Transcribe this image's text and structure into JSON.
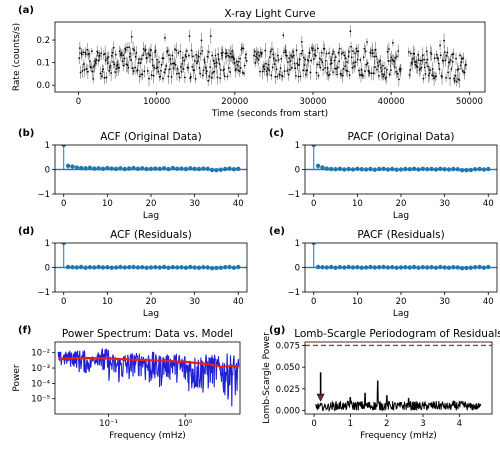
{
  "chart_data": [
    {
      "id": "a",
      "panel_label": "(a)",
      "type": "scatter",
      "title": "X-ray Light Curve",
      "xlabel": "Time (seconds from start)",
      "ylabel": "Rate (counts/s)",
      "xlim": [
        -3000,
        52000
      ],
      "ylim": [
        -0.03,
        0.28
      ],
      "xticks": [
        0,
        10000,
        20000,
        30000,
        40000,
        50000
      ],
      "xtick_labels": [
        "0",
        "10000",
        "20000",
        "30000",
        "40000",
        "50000"
      ],
      "yticks": [
        0.0,
        0.1,
        0.2
      ],
      "ytick_labels": [
        "0.0",
        "0.1",
        "0.2"
      ],
      "series": [
        {
          "x": [
            100,
            2500,
            5000,
            7500,
            10000,
            12500,
            15000,
            17500,
            20000,
            22500,
            25000,
            27500,
            30000,
            32500,
            35000,
            37500,
            40000,
            42500,
            45000,
            47500,
            49500
          ],
          "y": [
            0.1,
            0.09,
            0.11,
            0.1,
            0.09,
            0.1,
            0.09,
            0.08,
            0.1,
            0.12,
            0.1,
            0.09,
            0.11,
            0.1,
            0.11,
            0.1,
            0.08,
            0.1,
            0.09,
            0.08,
            0.07
          ],
          "color": "#000000"
        }
      ],
      "gaps_x": [
        [
          21600,
          22400
        ],
        [
          41300,
          42200
        ]
      ]
    },
    {
      "id": "b",
      "panel_label": "(b)",
      "type": "stem",
      "title": "ACF (Original Data)",
      "xlabel": "Lag",
      "ylabel": "",
      "xlim": [
        -2,
        42
      ],
      "ylim": [
        -1,
        1
      ],
      "xticks": [
        0,
        10,
        20,
        30,
        40
      ],
      "xtick_labels": [
        "0",
        "10",
        "20",
        "30",
        "40"
      ],
      "yticks": [
        -1,
        0,
        1
      ],
      "ytick_labels": [
        "−1",
        "0",
        "1"
      ],
      "band": 0.06,
      "values": [
        1.0,
        0.15,
        0.12,
        0.08,
        0.06,
        0.05,
        0.07,
        0.04,
        0.05,
        0.03,
        0.06,
        0.04,
        0.03,
        0.05,
        0.02,
        0.04,
        0.06,
        0.03,
        0.05,
        0.02,
        0.03,
        0.04,
        0.03,
        0.05,
        0.02,
        0.06,
        0.03,
        0.04,
        0.02,
        0.05,
        0.03,
        0.02,
        0.04,
        0.03,
        -0.02,
        -0.03,
        -0.01,
        0.02,
        0.04,
        0.01,
        0.03
      ]
    },
    {
      "id": "c",
      "panel_label": "(c)",
      "type": "stem",
      "title": "PACF (Original Data)",
      "xlabel": "Lag",
      "ylabel": "",
      "xlim": [
        -2,
        42
      ],
      "ylim": [
        -1,
        1
      ],
      "xticks": [
        0,
        10,
        20,
        30,
        40
      ],
      "xtick_labels": [
        "0",
        "10",
        "20",
        "30",
        "40"
      ],
      "yticks": [
        -1,
        0,
        1
      ],
      "ytick_labels": [
        "−1",
        "0",
        "1"
      ],
      "band": 0.06,
      "values": [
        1.0,
        0.15,
        0.08,
        0.04,
        0.02,
        0.01,
        0.03,
        0.0,
        0.02,
        0.0,
        0.03,
        0.01,
        0.0,
        0.02,
        -0.01,
        0.02,
        0.03,
        0.0,
        0.02,
        -0.01,
        0.0,
        0.02,
        0.01,
        0.03,
        0.0,
        0.03,
        0.01,
        0.02,
        0.0,
        0.03,
        0.01,
        0.0,
        0.02,
        0.01,
        -0.03,
        -0.03,
        -0.02,
        0.01,
        0.02,
        0.0,
        0.02
      ]
    },
    {
      "id": "d",
      "panel_label": "(d)",
      "type": "stem",
      "title": "ACF (Residuals)",
      "xlabel": "Lag",
      "ylabel": "",
      "xlim": [
        -2,
        42
      ],
      "ylim": [
        -1,
        1
      ],
      "xticks": [
        0,
        10,
        20,
        30,
        40
      ],
      "xtick_labels": [
        "0",
        "10",
        "20",
        "30",
        "40"
      ],
      "yticks": [
        -1,
        0,
        1
      ],
      "ytick_labels": [
        "−1",
        "0",
        "1"
      ],
      "band": 0.06,
      "values": [
        1.0,
        0.02,
        0.01,
        0.0,
        0.02,
        -0.01,
        0.01,
        0.0,
        0.02,
        0.0,
        0.01,
        -0.01,
        0.0,
        0.02,
        0.0,
        0.01,
        0.02,
        0.0,
        0.01,
        -0.01,
        0.0,
        0.01,
        0.0,
        0.02,
        -0.01,
        0.01,
        0.0,
        0.01,
        -0.01,
        0.02,
        0.0,
        -0.01,
        0.01,
        0.0,
        -0.03,
        -0.02,
        -0.01,
        0.01,
        0.02,
        -0.01,
        0.02
      ]
    },
    {
      "id": "e",
      "panel_label": "(e)",
      "type": "stem",
      "title": "PACF (Residuals)",
      "xlabel": "Lag",
      "ylabel": "",
      "xlim": [
        -2,
        42
      ],
      "ylim": [
        -1,
        1
      ],
      "xticks": [
        0,
        10,
        20,
        30,
        40
      ],
      "xtick_labels": [
        "0",
        "10",
        "20",
        "30",
        "40"
      ],
      "yticks": [
        -1,
        0,
        1
      ],
      "ytick_labels": [
        "−1",
        "0",
        "1"
      ],
      "band": 0.06,
      "values": [
        1.0,
        0.02,
        0.01,
        0.0,
        0.02,
        -0.01,
        0.01,
        0.0,
        0.02,
        0.0,
        0.01,
        -0.01,
        0.0,
        0.02,
        0.0,
        0.01,
        0.02,
        0.0,
        0.01,
        -0.01,
        0.0,
        0.01,
        0.0,
        0.02,
        -0.01,
        0.01,
        0.0,
        0.01,
        -0.01,
        0.02,
        0.0,
        -0.01,
        0.01,
        0.0,
        -0.03,
        -0.02,
        -0.01,
        0.01,
        0.02,
        -0.01,
        0.02
      ]
    },
    {
      "id": "f",
      "panel_label": "(f)",
      "type": "line",
      "title": "Power Spectrum: Data vs. Model",
      "xlabel": "Frequency (mHz)",
      "ylabel": "Power",
      "xscale": "log",
      "yscale": "log",
      "xlim": [
        0.02,
        5.2
      ],
      "ylim": [
        1e-06,
        0.05
      ],
      "xticks": [
        0.1,
        1
      ],
      "xtick_labels": [
        "10⁻¹",
        "10⁰"
      ],
      "yticks": [
        1e-05,
        0.0001,
        0.001,
        0.01
      ],
      "ytick_labels": [
        "10⁻⁵",
        "10⁻⁴",
        "10⁻³",
        "10⁻²"
      ],
      "series": [
        {
          "name": "Data",
          "color": "#1f1fd6",
          "x": [
            0.022,
            0.03,
            0.04,
            0.05,
            0.06,
            0.07,
            0.08,
            0.1,
            0.12,
            0.15,
            0.2,
            0.25,
            0.3,
            0.4,
            0.5,
            0.6,
            0.8,
            1.0,
            1.2,
            1.5,
            2.0,
            2.5,
            3.0,
            3.5,
            4.0,
            4.5,
            5.0
          ],
          "y": [
            0.012,
            0.0008,
            0.015,
            0.0003,
            0.006,
            0.0012,
            0.02,
            0.0001,
            0.008,
            5e-05,
            0.01,
            0.0002,
            0.012,
            3e-05,
            0.008,
            0.0001,
            0.0095,
            2e-05,
            0.007,
            1e-05,
            0.008,
            3e-05,
            0.006,
            5e-06,
            0.009,
            3e-06,
            0.004
          ]
        },
        {
          "name": "Model",
          "color": "#e8201b",
          "x": [
            0.022,
            0.05,
            0.1,
            0.2,
            0.5,
            1.0,
            2.0,
            3.0,
            4.0,
            5.0
          ],
          "y": [
            0.004,
            0.0045,
            0.0042,
            0.0035,
            0.003,
            0.0025,
            0.0018,
            0.0012,
            0.0014,
            0.0013
          ]
        }
      ]
    },
    {
      "id": "g",
      "panel_label": "(g)",
      "type": "line",
      "title": "Lomb-Scargle Periodogram of Residuals",
      "xlabel": "Frequency (mHz)",
      "ylabel": "Lomb-Scargle Power",
      "xlim": [
        -0.25,
        4.9
      ],
      "ylim": [
        -0.004,
        0.079
      ],
      "xticks": [
        0,
        1,
        2,
        3,
        4
      ],
      "xtick_labels": [
        "0",
        "1",
        "2",
        "3",
        "4"
      ],
      "yticks": [
        0.0,
        0.025,
        0.05,
        0.075
      ],
      "ytick_labels": [
        "0.000",
        "0.025",
        "0.050",
        "0.075"
      ],
      "threshold": 0.075,
      "arrow_at_x": 0.18,
      "series": [
        {
          "x": [
            0.03,
            0.1,
            0.2,
            0.3,
            0.4,
            0.5,
            0.6,
            0.7,
            0.8,
            0.9,
            1.0,
            1.2,
            1.4,
            1.5,
            1.6,
            1.75,
            1.9,
            2.0,
            2.2,
            2.4,
            2.6,
            2.8,
            3.0,
            3.2,
            3.4,
            3.6,
            3.8,
            4.0,
            4.2,
            4.4,
            4.6
          ],
          "y": [
            0.0,
            0.009,
            0.002,
            0.008,
            0.003,
            0.01,
            0.002,
            0.011,
            0.003,
            0.009,
            0.015,
            0.004,
            0.02,
            0.004,
            0.012,
            0.034,
            0.005,
            0.017,
            0.005,
            0.01,
            0.014,
            0.004,
            0.01,
            0.003,
            0.012,
            0.004,
            0.009,
            0.012,
            0.003,
            0.009,
            0.006
          ],
          "color": "#000000"
        }
      ]
    }
  ]
}
